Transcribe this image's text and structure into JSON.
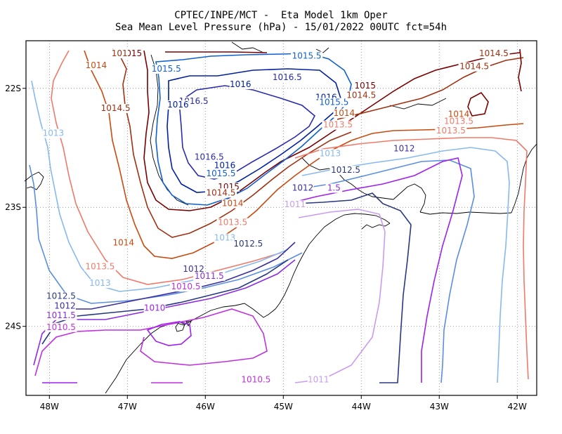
{
  "header": {
    "line1": "CPTEC/INPE/MCT -  Eta Model 1km Oper",
    "line2": "Sea Mean Level Pressure (hPa) - 15/01/2022 00UTC fct=54h"
  },
  "axes": {
    "lon_min": -48.3,
    "lon_max": -41.75,
    "lat_min": -24.58,
    "lat_max": -21.6,
    "x_ticks": [
      {
        "value": -48,
        "label": "48W"
      },
      {
        "value": -47,
        "label": "47W"
      },
      {
        "value": -46,
        "label": "46W"
      },
      {
        "value": -45,
        "label": "45W"
      },
      {
        "value": -44,
        "label": "44W"
      },
      {
        "value": -43,
        "label": "43W"
      },
      {
        "value": -42,
        "label": "42W"
      }
    ],
    "y_ticks": [
      {
        "value": -22,
        "label": "22S"
      },
      {
        "value": -23,
        "label": "23S"
      },
      {
        "value": -24,
        "label": "24S"
      }
    ],
    "grid": "dotted"
  },
  "colors": {
    "1010": "#a020f0",
    "1010.5": "#c030e0",
    "1011": "#c89cf0",
    "1011.5": "#8a2be2",
    "1012": "#3b2fa0",
    "1012.5": "#283880",
    "1013": "#87b8f0",
    "1013.5": "#f07a6a",
    "1014": "#c84a10",
    "1014.5": "#a03010",
    "1015": "#7a0000",
    "1015.5": "#1060d0",
    "1016": "#0020a0",
    "1016.5": "#2a2ab0",
    "coast": "#000000"
  },
  "contour_labels": [
    {
      "text": "1015",
      "lon": -46.95,
      "lat": -21.73,
      "level": "1015"
    },
    {
      "text": "101",
      "lon": -47.1,
      "lat": -21.73,
      "level": "1014.5"
    },
    {
      "text": "1015.5",
      "lon": -44.7,
      "lat": -21.75,
      "level": "1015.5"
    },
    {
      "text": "1015.5",
      "lon": -46.5,
      "lat": -21.86,
      "level": "1015.5"
    },
    {
      "text": "1016",
      "lon": -45.55,
      "lat": -21.99,
      "level": "1016"
    },
    {
      "text": "1014",
      "lon": -47.4,
      "lat": -21.83,
      "level": "1014"
    },
    {
      "text": "1016.5",
      "lon": -44.95,
      "lat": -21.93,
      "level": "1016.5"
    },
    {
      "text": "1016.5",
      "lon": -46.15,
      "lat": -22.13,
      "level": "1016.5"
    },
    {
      "text": "1016",
      "lon": -46.35,
      "lat": -22.16,
      "level": "1016"
    },
    {
      "text": "1014.5",
      "lon": -47.15,
      "lat": -22.19,
      "level": "1014.5"
    },
    {
      "text": "1013",
      "lon": -47.95,
      "lat": -22.4,
      "level": "1013"
    },
    {
      "text": "1016",
      "lon": -44.45,
      "lat": -22.1,
      "level": "1016"
    },
    {
      "text": "1015.5",
      "lon": -44.35,
      "lat": -22.14,
      "level": "1015.5"
    },
    {
      "text": "1015",
      "lon": -43.95,
      "lat": -22.0,
      "level": "1015"
    },
    {
      "text": "1014.5",
      "lon": -44.0,
      "lat": -22.08,
      "level": "1014.5"
    },
    {
      "text": "1014",
      "lon": -44.22,
      "lat": -22.23,
      "level": "1014"
    },
    {
      "text": "1013.5",
      "lon": -44.3,
      "lat": -22.33,
      "level": "1013.5"
    },
    {
      "text": "1013",
      "lon": -44.4,
      "lat": -22.57,
      "level": "1013"
    },
    {
      "text": "1012.5",
      "lon": -44.2,
      "lat": -22.71,
      "level": "1012.5"
    },
    {
      "text": "1012",
      "lon": -43.45,
      "lat": -22.53,
      "level": "1012"
    },
    {
      "text": "1014.5",
      "lon": -42.3,
      "lat": -21.73,
      "level": "1014.5"
    },
    {
      "text": "1014.5",
      "lon": -42.55,
      "lat": -21.84,
      "level": "1014.5"
    },
    {
      "text": "1014",
      "lon": -42.75,
      "lat": -22.24,
      "level": "1014"
    },
    {
      "text": "1013.5",
      "lon": -42.75,
      "lat": -22.3,
      "level": "1013.5"
    },
    {
      "text": "1013.5",
      "lon": -42.85,
      "lat": -22.38,
      "level": "1013.5"
    },
    {
      "text": "1016.5",
      "lon": -45.95,
      "lat": -22.6,
      "level": "1016.5"
    },
    {
      "text": "1016",
      "lon": -45.75,
      "lat": -22.67,
      "level": "1016"
    },
    {
      "text": "1015.5",
      "lon": -45.8,
      "lat": -22.74,
      "level": "1015.5"
    },
    {
      "text": "1015",
      "lon": -45.7,
      "lat": -22.85,
      "level": "1015"
    },
    {
      "text": "1014.5",
      "lon": -45.8,
      "lat": -22.9,
      "level": "1014.5"
    },
    {
      "text": "1014",
      "lon": -45.65,
      "lat": -22.99,
      "level": "1014"
    },
    {
      "text": "1012",
      "lon": -44.75,
      "lat": -22.86,
      "level": "1012"
    },
    {
      "text": "1.5",
      "lon": -44.35,
      "lat": -22.86,
      "level": "1011.5"
    },
    {
      "text": "1011",
      "lon": -44.85,
      "lat": -23.0,
      "level": "1011"
    },
    {
      "text": "1013.5",
      "lon": -45.65,
      "lat": -23.15,
      "level": "1013.5"
    },
    {
      "text": "1013",
      "lon": -45.75,
      "lat": -23.28,
      "level": "1013"
    },
    {
      "text": "1012.5",
      "lon": -45.45,
      "lat": -23.33,
      "level": "1012.5"
    },
    {
      "text": "1014",
      "lon": -47.05,
      "lat": -23.32,
      "level": "1014"
    },
    {
      "text": "1013.5",
      "lon": -47.35,
      "lat": -23.52,
      "level": "1013.5"
    },
    {
      "text": "1013",
      "lon": -47.35,
      "lat": -23.66,
      "level": "1013"
    },
    {
      "text": "1012",
      "lon": -46.15,
      "lat": -23.54,
      "level": "1012"
    },
    {
      "text": "1011.5",
      "lon": -45.95,
      "lat": -23.6,
      "level": "1011.5"
    },
    {
      "text": "1010.5",
      "lon": -46.25,
      "lat": -23.69,
      "level": "1010.5"
    },
    {
      "text": "1012.5",
      "lon": -47.85,
      "lat": -23.77,
      "level": "1012.5"
    },
    {
      "text": "1012",
      "lon": -47.8,
      "lat": -23.85,
      "level": "1012"
    },
    {
      "text": "1010",
      "lon": -46.65,
      "lat": -23.87,
      "level": "1010"
    },
    {
      "text": "1011.5",
      "lon": -47.85,
      "lat": -23.93,
      "level": "1011.5"
    },
    {
      "text": "1010.5",
      "lon": -47.85,
      "lat": -24.03,
      "level": "1010.5"
    },
    {
      "text": "1010.5",
      "lon": -45.35,
      "lat": -24.47,
      "level": "1010.5"
    },
    {
      "text": "1011",
      "lon": -44.55,
      "lat": -24.47,
      "level": "1011"
    }
  ]
}
